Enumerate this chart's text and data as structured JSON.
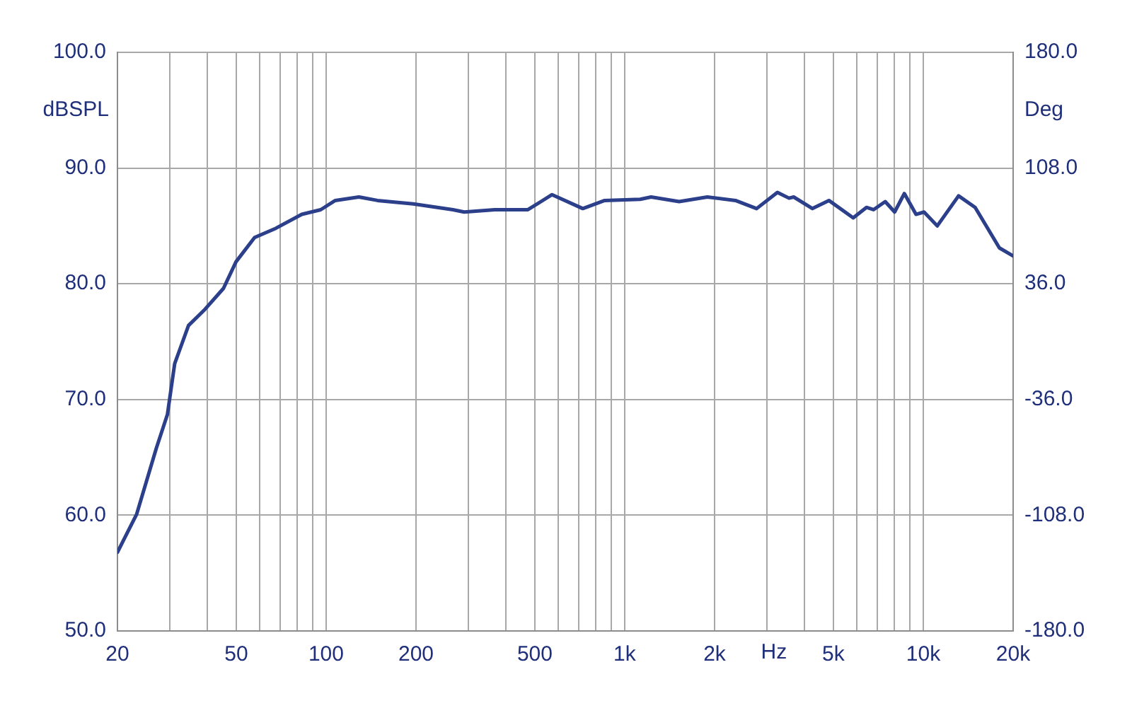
{
  "chart_data": {
    "type": "line",
    "xlabel": "Hz",
    "ylabel": "dBSPL",
    "y2label": "Deg",
    "log": "x",
    "grid": true,
    "marker": "none",
    "line_style": "solid",
    "x": [
      20,
      23.2,
      27,
      29.4,
      31.1,
      34.6,
      39.3,
      45.3,
      49.9,
      57.6,
      67.9,
      82.9,
      95.9,
      107.3,
      128.7,
      148.6,
      195.8,
      266,
      290,
      367,
      474,
      571,
      724,
      857,
      1127,
      1226,
      1522,
      1891,
      2349,
      2766,
      3247,
      3551,
      3682,
      4255,
      4830,
      5826,
      6453,
      6813,
      7458,
      8020,
      8640,
      9456,
      10060,
      11140,
      13130,
      14920,
      17990,
      20000
    ],
    "series": [
      {
        "color": "#2b3f8a",
        "values": [
          56.8,
          60.1,
          65.8,
          68.7,
          73.1,
          76.4,
          77.8,
          79.6,
          81.9,
          84.0,
          84.8,
          86.0,
          86.4,
          87.2,
          87.5,
          87.2,
          86.9,
          86.4,
          86.2,
          86.4,
          86.4,
          87.7,
          86.5,
          87.2,
          87.3,
          87.5,
          87.1,
          87.5,
          87.2,
          86.5,
          87.9,
          87.4,
          87.5,
          86.5,
          87.2,
          85.7,
          86.6,
          86.4,
          87.1,
          86.2,
          87.8,
          86.0,
          86.2,
          85.0,
          87.6,
          86.6,
          83.1,
          82.4
        ]
      }
    ],
    "xlim": [
      20,
      20000
    ],
    "xticks": [
      20,
      {
        "value": 30,
        "label": null
      },
      {
        "value": 40,
        "label": null
      },
      50,
      {
        "value": 60,
        "label": null
      },
      {
        "value": 70,
        "label": null
      },
      {
        "value": 80,
        "label": null
      },
      {
        "value": 90,
        "label": null
      },
      100,
      200,
      {
        "value": 300,
        "label": null
      },
      {
        "value": 400,
        "label": null
      },
      500,
      {
        "value": 600,
        "label": null
      },
      {
        "value": 700,
        "label": null
      },
      {
        "value": 800,
        "label": null
      },
      {
        "value": 900,
        "label": null
      },
      {
        "value": 1000,
        "label": "1k"
      },
      {
        "value": 2000,
        "label": "2k"
      },
      {
        "value": 3000,
        "label": null
      },
      {
        "value": 4000,
        "label": null
      },
      {
        "value": 5000,
        "label": "5k"
      },
      {
        "value": 6000,
        "label": null
      },
      {
        "value": 7000,
        "label": null
      },
      {
        "value": 8000,
        "label": null
      },
      {
        "value": 9000,
        "label": null
      },
      {
        "value": 10000,
        "label": "10k"
      },
      {
        "value": 20000,
        "label": "20k"
      }
    ],
    "ylim": [
      50,
      100
    ],
    "yticks": [
      {
        "value": 50,
        "label": "50.0"
      },
      {
        "value": 60,
        "label": "60.0"
      },
      {
        "value": 70,
        "label": "70.0"
      },
      {
        "value": 80,
        "label": "80.0"
      },
      {
        "value": 90,
        "label": "90.0"
      },
      {
        "value": 100,
        "label": "100.0"
      }
    ],
    "y2lim": [
      -180,
      180
    ],
    "y2ticks": [
      {
        "value": -180,
        "label": "-180.0"
      },
      {
        "value": -108,
        "label": "-108.0"
      },
      {
        "value": -36,
        "label": "-36.0"
      },
      {
        "value": 36,
        "label": "36.0"
      },
      {
        "value": 108,
        "label": "108.0"
      },
      {
        "value": 180,
        "label": "180.0"
      }
    ]
  }
}
